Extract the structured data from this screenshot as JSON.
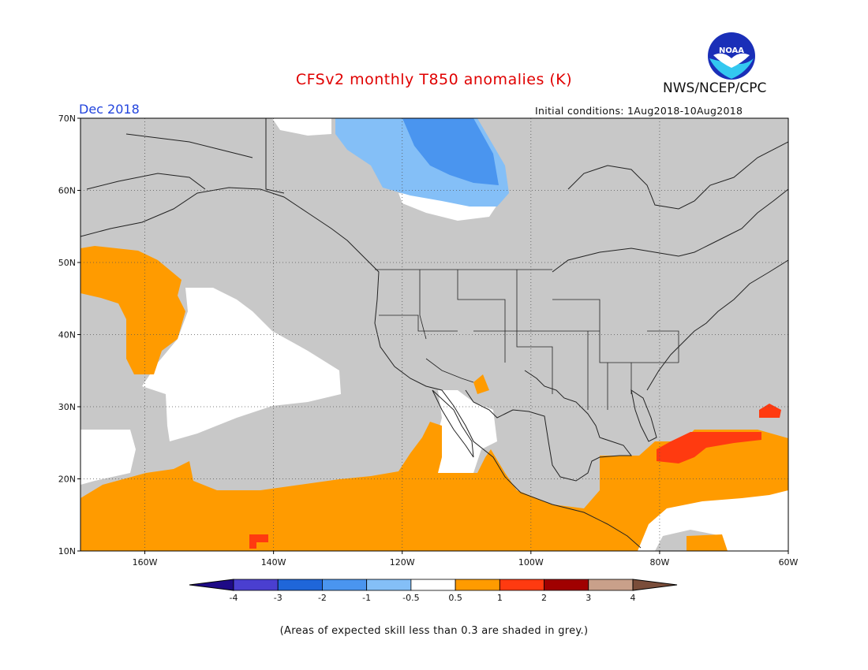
{
  "title": "CFSv2 monthly T850 anomalies (K)",
  "org": "NWS/NCEP/CPC",
  "logo_text": "NOAA",
  "valid_month": "Dec 2018",
  "initial_conditions": "Initial conditions: 1Aug2018-10Aug2018",
  "footnote": "(Areas of expected skill less than 0.3 are shaded in grey.)",
  "map": {
    "lat_ticks": [
      "70N",
      "60N",
      "50N",
      "40N",
      "30N",
      "20N",
      "10N"
    ],
    "lon_ticks": [
      "160W",
      "140W",
      "120W",
      "100W",
      "80W",
      "60W"
    ],
    "lon_range": [
      -170,
      -60
    ],
    "lat_range": [
      10,
      70
    ]
  },
  "legend": {
    "labels": [
      "-4",
      "-3",
      "-2",
      "-1",
      "-0.5",
      "0.5",
      "1",
      "2",
      "3",
      "4"
    ],
    "colors": [
      "#1e0a86",
      "#4a3fd0",
      "#1f66d9",
      "#4a95ef",
      "#84bff7",
      "#ffffff",
      "#ff9b00",
      "#ff3a10",
      "#a00000",
      "#c9a08a",
      "#7a4d3a"
    ]
  },
  "colors": {
    "grey_low_skill": "#c8c8c8",
    "warm_light": "#ff9b00",
    "warm_strong": "#ff3a10",
    "cold_light": "#84bff7",
    "cold_mid": "#4a95ef",
    "neutral": "#ffffff"
  }
}
